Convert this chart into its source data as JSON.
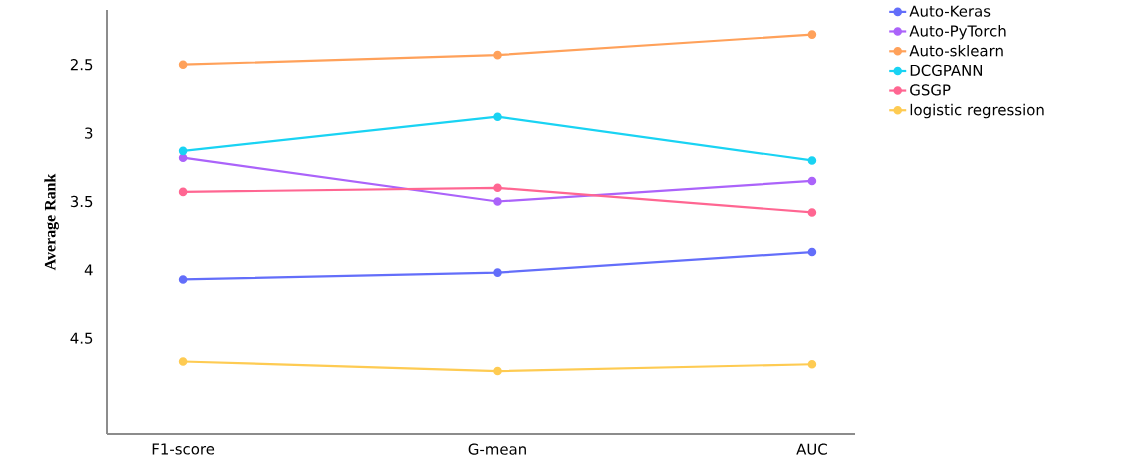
{
  "chart_data": {
    "type": "line",
    "ylabel": "Average Rank",
    "categories": [
      "F1-score",
      "G-mean",
      "AUC"
    ],
    "ylim": [
      5.2,
      2.1
    ],
    "yticks": [
      2.5,
      3,
      3.5,
      4,
      4.5
    ],
    "series": [
      {
        "name": "Auto-Keras",
        "color": "#636efa",
        "values": [
          4.07,
          4.02,
          3.87
        ]
      },
      {
        "name": "Auto-PyTorch",
        "color": "#ab63fa",
        "values": [
          3.18,
          3.5,
          3.35
        ]
      },
      {
        "name": "Auto-sklearn",
        "color": "#ffa15a",
        "values": [
          2.5,
          2.43,
          2.28
        ]
      },
      {
        "name": "DCGPANN",
        "color": "#19d3f3",
        "values": [
          3.13,
          2.88,
          3.2
        ]
      },
      {
        "name": "GSGP",
        "color": "#ff6692",
        "values": [
          3.43,
          3.4,
          3.58
        ]
      },
      {
        "name": "logistic regression",
        "color": "#fecb52",
        "values": [
          4.67,
          4.74,
          4.69
        ]
      }
    ],
    "marker": "circle",
    "line_style": "solid",
    "grid": false,
    "legend": "top right"
  }
}
